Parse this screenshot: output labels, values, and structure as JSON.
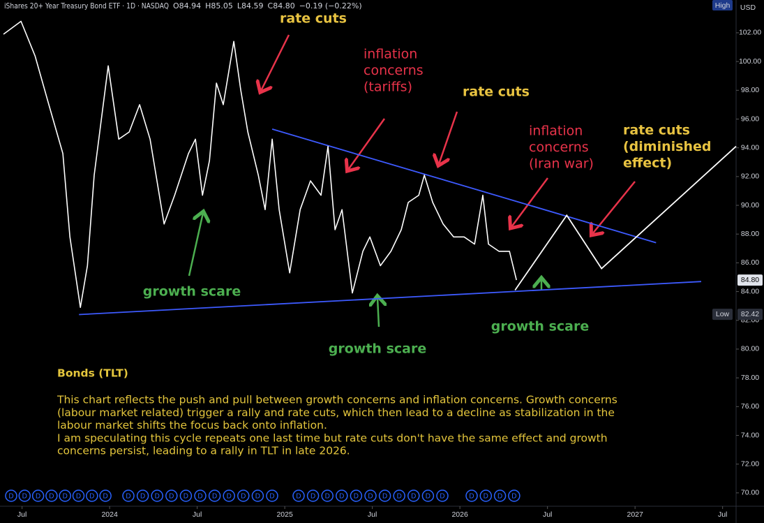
{
  "chart_data": {
    "type": "line",
    "title": "iShares 20+ Year Treasury Bond ETF · 1D · NASDAQ",
    "legend_values": [
      "O84.94",
      "H85.05",
      "L84.59",
      "C84.80",
      "−0.19 (−0.22%)"
    ],
    "currency": "USD",
    "high_label": "High",
    "low_label": "Low",
    "price_tags": [
      {
        "value": 84.8,
        "label": "84.80"
      },
      {
        "value": 82.42,
        "label": "82.42"
      }
    ],
    "color": "#ffffff",
    "x": [
      2023.394,
      2023.494,
      2023.574,
      2023.653,
      2023.733,
      2023.773,
      2023.833,
      2023.873,
      2023.912,
      2023.992,
      2024.052,
      2024.112,
      2024.171,
      2024.231,
      2024.311,
      2024.371,
      2024.45,
      2024.49,
      2024.53,
      2024.57,
      2024.61,
      2024.649,
      2024.709,
      2024.749,
      2024.789,
      2024.849,
      2024.888,
      2024.928,
      2024.968,
      2025.028,
      2025.088,
      2025.147,
      2025.207,
      2025.247,
      2025.287,
      2025.327,
      2025.386,
      2025.446,
      2025.486,
      2025.546,
      2025.606,
      2025.665,
      2025.705,
      2025.765,
      2025.797,
      2025.845,
      2025.904,
      2025.964,
      2026.024,
      2026.084,
      2026.131,
      2026.163,
      2026.223,
      2026.283,
      2026.323
    ],
    "values": [
      101.9,
      102.8,
      100.4,
      97.0,
      93.6,
      87.8,
      82.9,
      85.8,
      92.1,
      99.7,
      94.6,
      95.1,
      97.0,
      94.6,
      88.7,
      90.7,
      93.6,
      94.6,
      90.7,
      93.1,
      98.5,
      97.0,
      101.4,
      98.0,
      95.1,
      92.1,
      89.7,
      94.6,
      89.7,
      85.3,
      89.7,
      91.7,
      90.7,
      94.1,
      88.3,
      89.7,
      83.9,
      86.8,
      87.8,
      85.8,
      86.8,
      88.3,
      90.2,
      90.7,
      92.1,
      90.2,
      88.7,
      87.8,
      87.8,
      87.3,
      90.7,
      87.3,
      86.8,
      86.8,
      84.8
    ],
    "projection": {
      "color": "#ffffff",
      "x": [
        2026.315,
        2026.61,
        2026.809,
        2027.577
      ],
      "values": [
        84.1,
        89.3,
        85.6,
        94.1
      ]
    },
    "trendlines": [
      {
        "color": "#3d5afe",
        "x": [
          2024.928,
          2027.12
        ],
        "values": [
          95.3,
          87.4
        ]
      },
      {
        "color": "#3d5afe",
        "x": [
          2023.825,
          2027.378
        ],
        "values": [
          82.4,
          84.7
        ]
      }
    ],
    "xlim": [
      2023.374,
      2027.577
    ],
    "xticks": [
      {
        "value": 2023.5,
        "label": "Jul"
      },
      {
        "value": 2024,
        "label": "2024"
      },
      {
        "value": 2024.5,
        "label": "Jul"
      },
      {
        "value": 2025,
        "label": "2025"
      },
      {
        "value": 2025.5,
        "label": "Jul"
      },
      {
        "value": 2026,
        "label": "2026"
      },
      {
        "value": 2026.5,
        "label": "Jul"
      },
      {
        "value": 2027,
        "label": "2027"
      },
      {
        "value": 2027.5,
        "label": "Jul"
      }
    ],
    "ylim": [
      69.07,
      104.28
    ],
    "yticks": [
      {
        "value": 70,
        "label": "70.00"
      },
      {
        "value": 72,
        "label": "72.00"
      },
      {
        "value": 74,
        "label": "74.00"
      },
      {
        "value": 76,
        "label": "76.00"
      },
      {
        "value": 78,
        "label": "78.00"
      },
      {
        "value": 80,
        "label": "80.00"
      },
      {
        "value": 82,
        "label": "82.00"
      },
      {
        "value": 84,
        "label": "84.00"
      },
      {
        "value": 86,
        "label": "86.00"
      },
      {
        "value": 88,
        "label": "88.00"
      },
      {
        "value": 90,
        "label": "90.00"
      },
      {
        "value": 92,
        "label": "92.00"
      },
      {
        "value": 94,
        "label": "94.00"
      },
      {
        "value": 96,
        "label": "96.00"
      },
      {
        "value": 98,
        "label": "98.00"
      },
      {
        "value": 100,
        "label": "100.00"
      },
      {
        "value": 102,
        "label": "102.00"
      }
    ],
    "dividend_marker": "D",
    "annotations": [
      {
        "color": "#e8c341",
        "lines": [
          "rate cuts"
        ]
      },
      {
        "color": "#e8334a",
        "lines": [
          "inflation",
          "concerns",
          "(tariffs)"
        ]
      },
      {
        "color": "#e8c341",
        "lines": [
          "rate cuts"
        ]
      },
      {
        "color": "#e8334a",
        "lines": [
          "inflation",
          "concerns",
          "(Iran war)"
        ]
      },
      {
        "color": "#e8c341",
        "lines": [
          "rate cuts",
          "(diminished",
          "effect)"
        ]
      },
      {
        "color": "#4caf50",
        "lines": [
          "growth scare"
        ]
      },
      {
        "color": "#4caf50",
        "lines": [
          "growth scare"
        ]
      },
      {
        "color": "#4caf50",
        "lines": [
          "growth scare"
        ]
      }
    ],
    "note": {
      "title": "Bonds (TLT)",
      "lines": [
        "This chart reflects the push and pull between growth concerns and inflation concerns. Growth concerns",
        "(labour market related) trigger a rally and rate cuts, which then lead to a decline as stabilization in the",
        "labour market shifts the focus back onto inflation.",
        "I am speculating this cycle repeats one last time but rate cuts don't have the same effect and growth",
        "concerns persist, leading to a rally in TLT in late 2026."
      ]
    }
  }
}
